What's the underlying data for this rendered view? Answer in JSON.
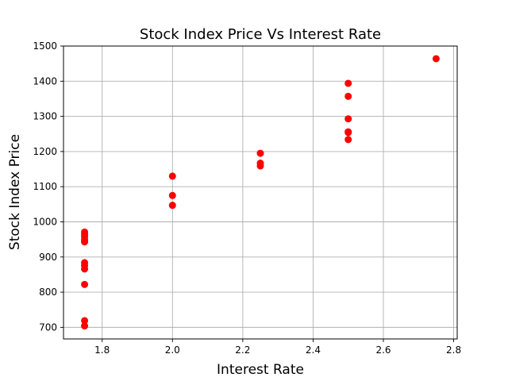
{
  "chart_data": {
    "type": "scatter",
    "title": "Stock Index Price Vs Interest Rate",
    "xlabel": "Interest Rate",
    "ylabel": "Stock Index Price",
    "xlim": [
      1.69,
      2.81
    ],
    "ylim": [
      667,
      1500
    ],
    "xticks": [
      1.8,
      2.0,
      2.2,
      2.4,
      2.6,
      2.8
    ],
    "yticks": [
      700,
      800,
      900,
      1000,
      1100,
      1200,
      1300,
      1400,
      1500
    ],
    "xtick_labels": [
      "1.8",
      "2.0",
      "2.2",
      "2.4",
      "2.6",
      "2.8"
    ],
    "ytick_labels": [
      "700",
      "800",
      "900",
      "1000",
      "1100",
      "1200",
      "1300",
      "1400",
      "1500"
    ],
    "grid": true,
    "marker_color": "#ff0000",
    "points": [
      {
        "x": 2.75,
        "y": 1464
      },
      {
        "x": 2.5,
        "y": 1394
      },
      {
        "x": 2.5,
        "y": 1357
      },
      {
        "x": 2.5,
        "y": 1293
      },
      {
        "x": 2.5,
        "y": 1256
      },
      {
        "x": 2.5,
        "y": 1254
      },
      {
        "x": 2.5,
        "y": 1234
      },
      {
        "x": 2.25,
        "y": 1195
      },
      {
        "x": 2.25,
        "y": 1167
      },
      {
        "x": 2.25,
        "y": 1159
      },
      {
        "x": 2.0,
        "y": 1130
      },
      {
        "x": 2.0,
        "y": 1075
      },
      {
        "x": 2.0,
        "y": 1047
      },
      {
        "x": 1.75,
        "y": 965
      },
      {
        "x": 1.75,
        "y": 943
      },
      {
        "x": 1.75,
        "y": 958
      },
      {
        "x": 1.75,
        "y": 971
      },
      {
        "x": 1.75,
        "y": 949
      },
      {
        "x": 1.75,
        "y": 884
      },
      {
        "x": 1.75,
        "y": 866
      },
      {
        "x": 1.75,
        "y": 876
      },
      {
        "x": 1.75,
        "y": 822
      },
      {
        "x": 1.75,
        "y": 704
      },
      {
        "x": 1.75,
        "y": 719
      }
    ]
  }
}
